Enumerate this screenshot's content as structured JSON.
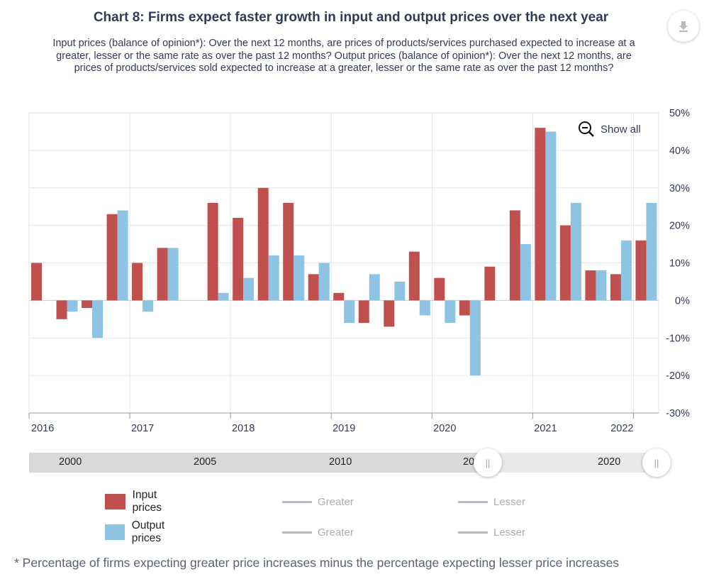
{
  "title": "Chart 8: Firms expect faster growth in input and output prices over the next year",
  "subtitle": "Input prices (balance of opinion*): Over the next 12 months, are prices of products/services purchased expected to increase at a greater, lesser or the same rate as over the past 12 months? Output prices (balance of opinion*): Over the next 12 months, are prices of products/services sold expected to increase at a greater, lesser or the same rate as over the past 12 months?",
  "show_all_label": "Show all",
  "footnote": "* Percentage of firms expecting greater price increases minus the percentage expecting lesser price increases",
  "navigator": {
    "labels": [
      "2000",
      "2005",
      "2010",
      "20",
      "2020"
    ],
    "handle_glyph": "||"
  },
  "legend": {
    "rows": [
      {
        "series": "Input prices",
        "greater": "Greater",
        "lesser": "Lesser"
      },
      {
        "series": "Output prices",
        "greater": "Greater",
        "lesser": "Lesser"
      }
    ]
  },
  "colors": {
    "input": "#c0504d",
    "output": "#8ec3e3",
    "grid": "#e6e6e6",
    "axis": "#9a9a9a"
  },
  "chart_data": {
    "type": "bar",
    "categories": [
      "2016Q1",
      "2016Q2",
      "2016Q3",
      "2016Q4",
      "2017Q1",
      "2017Q2",
      "2017Q3",
      "2017Q4",
      "2018Q1",
      "2018Q2",
      "2018Q3",
      "2018Q4",
      "2019Q1",
      "2019Q2",
      "2019Q3",
      "2019Q4",
      "2020Q1",
      "2020Q2",
      "2020Q3",
      "2020Q4",
      "2021Q1",
      "2021Q2",
      "2021Q3",
      "2021Q4",
      "2022Q1"
    ],
    "series": [
      {
        "name": "Input prices",
        "values": [
          10,
          -5,
          -2,
          23,
          10,
          14,
          null,
          26,
          22,
          30,
          26,
          7,
          2,
          -6,
          -7,
          13,
          6,
          -4,
          9,
          24,
          46,
          20,
          8,
          7,
          16
        ]
      },
      {
        "name": "Output prices",
        "values": [
          null,
          -3,
          -10,
          24,
          -3,
          14,
          null,
          2,
          6,
          12,
          12,
          10,
          -6,
          7,
          5,
          -4,
          -6,
          -20,
          null,
          15,
          45,
          26,
          8,
          16,
          26
        ]
      }
    ],
    "x_tick_labels": [
      "2016",
      "2017",
      "2018",
      "2019",
      "2020",
      "2021",
      "2022"
    ],
    "y_tick_labels": [
      "50%",
      "40%",
      "30%",
      "20%",
      "10%",
      "0%",
      "-10%",
      "-20%",
      "-30%"
    ],
    "ylim": [
      -30,
      50
    ],
    "grid": true,
    "legend_position": "bottom"
  }
}
